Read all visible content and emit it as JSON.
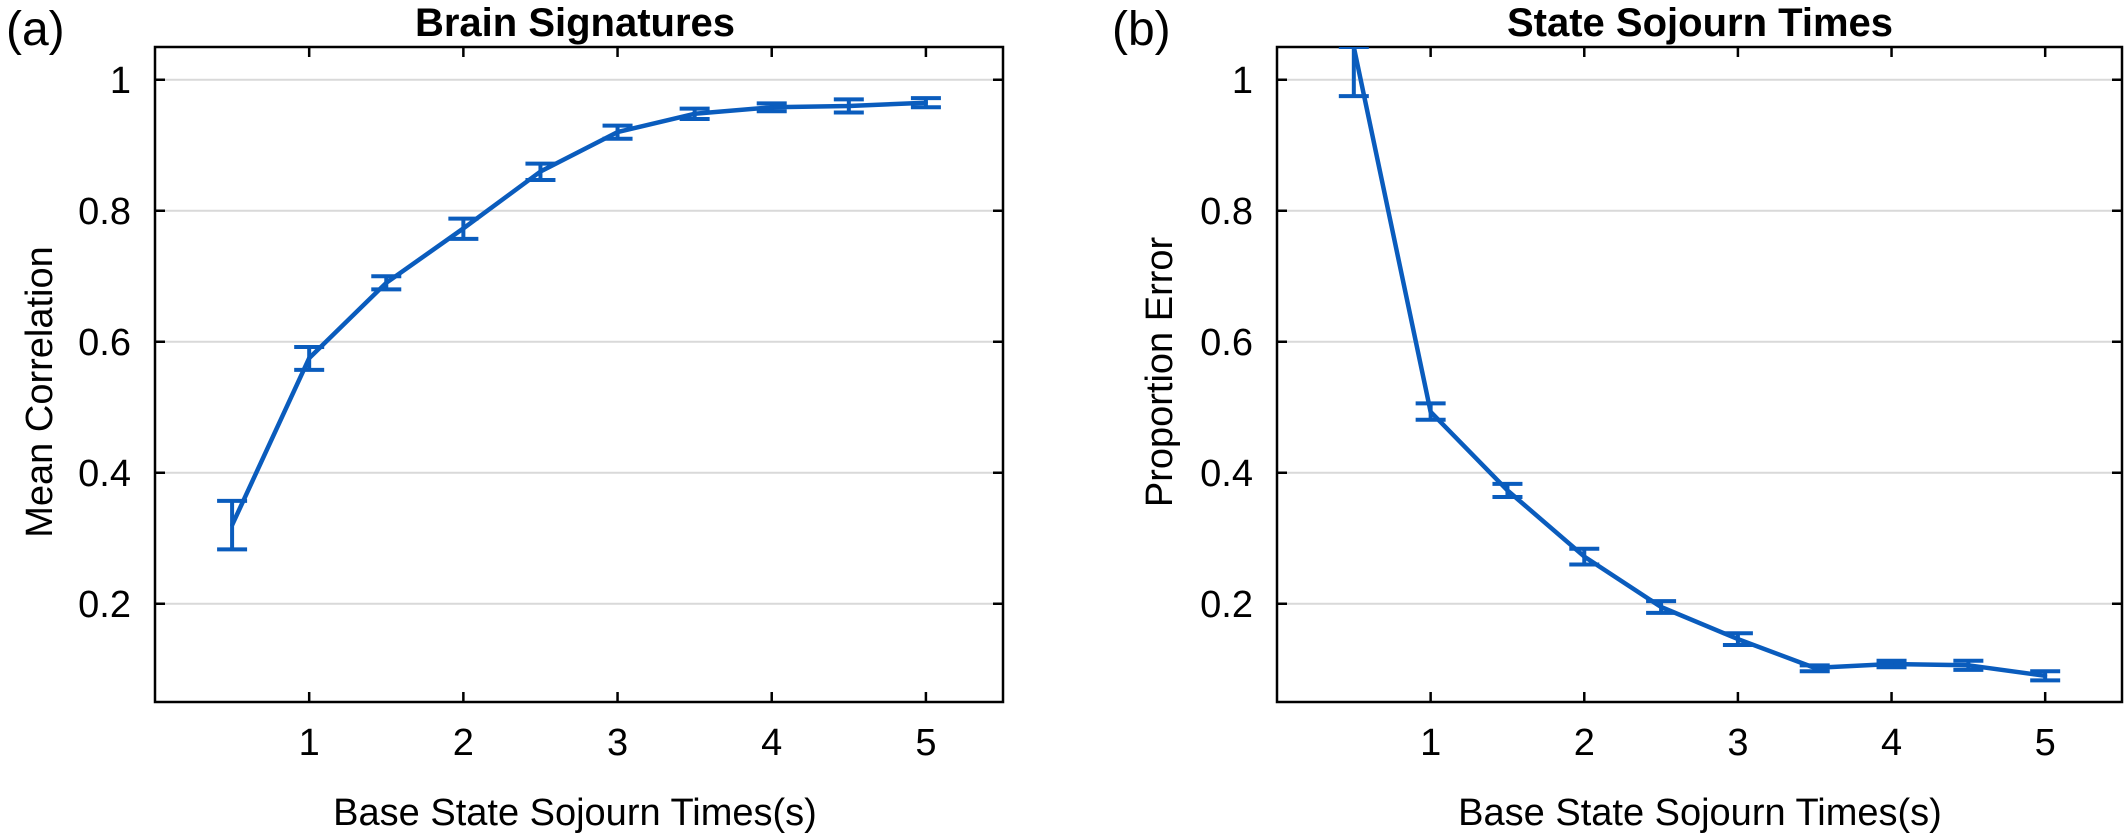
{
  "figure": {
    "panels": [
      {
        "letter": "(a)"
      },
      {
        "letter": "(b)"
      }
    ]
  },
  "chart_data": [
    {
      "type": "line",
      "title": "Brain Signatures",
      "xlabel": "Base State Sojourn Times(s)",
      "ylabel": "Mean Correlation",
      "xlim": [
        0.0,
        5.5
      ],
      "ylim": [
        0.05,
        1.05
      ],
      "xticks": [
        1,
        2,
        3,
        4,
        5
      ],
      "yticks": [
        0.2,
        0.4,
        0.6,
        0.8,
        1
      ],
      "ytick_labels": [
        "0.2",
        "0.4",
        "0.6",
        "0.8",
        "1"
      ],
      "grid": "horizontal",
      "line_color": "#0a5cbd",
      "series": [
        {
          "x": [
            0.5,
            1.0,
            1.5,
            2.0,
            2.5,
            3.0,
            3.5,
            4.0,
            4.5,
            5.0
          ],
          "values": [
            0.32,
            0.575,
            0.69,
            0.773,
            0.86,
            0.92,
            0.948,
            0.958,
            0.96,
            0.965
          ],
          "err_low": [
            0.283,
            0.557,
            0.68,
            0.757,
            0.847,
            0.91,
            0.94,
            0.952,
            0.95,
            0.958
          ],
          "err_high": [
            0.357,
            0.592,
            0.7,
            0.788,
            0.872,
            0.93,
            0.956,
            0.964,
            0.97,
            0.972
          ]
        }
      ]
    },
    {
      "type": "line",
      "title": "State Sojourn Times",
      "xlabel": "Base State Sojourn Times(s)",
      "ylabel": "Proportion Error",
      "xlim": [
        0.0,
        5.5
      ],
      "ylim": [
        0.05,
        1.05
      ],
      "xticks": [
        1,
        2,
        3,
        4,
        5
      ],
      "yticks": [
        0.2,
        0.4,
        0.6,
        0.8,
        1
      ],
      "ytick_labels": [
        "0.2",
        "0.4",
        "0.6",
        "0.8",
        "1"
      ],
      "grid": "horizontal",
      "line_color": "#0a5cbd",
      "series": [
        {
          "x": [
            0.5,
            1.0,
            1.5,
            2.0,
            2.5,
            3.0,
            3.5,
            4.0,
            4.5,
            5.0
          ],
          "values": [
            1.05,
            0.493,
            0.373,
            0.272,
            0.195,
            0.146,
            0.102,
            0.108,
            0.106,
            0.09
          ],
          "err_low": [
            0.975,
            0.481,
            0.363,
            0.26,
            0.186,
            0.137,
            0.097,
            0.103,
            0.099,
            0.083
          ],
          "err_high": [
            1.05,
            0.506,
            0.383,
            0.284,
            0.204,
            0.155,
            0.106,
            0.113,
            0.113,
            0.097
          ]
        }
      ]
    }
  ]
}
